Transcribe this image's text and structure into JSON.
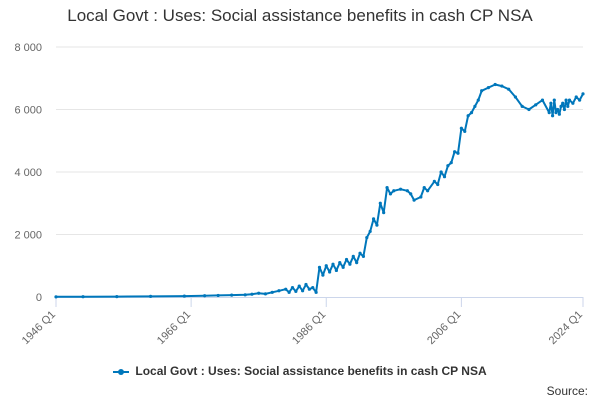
{
  "title": "Local Govt : Uses: Social assistance benefits in cash CP NSA",
  "legend_label": "Local Govt : Uses: Social assistance benefits in cash CP NSA",
  "source_label": "Source:",
  "colors": {
    "series": "#0077bb",
    "grid": "#e6e6e6",
    "axis": "#ccd6eb",
    "text": "#666666"
  },
  "chart_data": {
    "type": "line",
    "title": "Local Govt : Uses: Social assistance benefits in cash CP NSA",
    "xlabel": "",
    "ylabel": "",
    "xlim": [
      1946.0,
      2024.0
    ],
    "ylim": [
      0,
      8000
    ],
    "y_ticks": [
      0,
      2000,
      4000,
      6000,
      8000
    ],
    "y_tick_labels": [
      "0",
      "2 000",
      "4 000",
      "6 000",
      "8 000"
    ],
    "x_ticks": [
      1946.0,
      1966.0,
      1986.0,
      2006.0,
      2024.0
    ],
    "x_tick_labels": [
      "1946 Q1",
      "1966 Q1",
      "1986 Q1",
      "2006 Q1",
      "2024 Q1"
    ],
    "series": [
      {
        "name": "Local Govt : Uses: Social assistance benefits in cash CP NSA",
        "x": [
          1946,
          1950,
          1955,
          1960,
          1965,
          1968,
          1970,
          1972,
          1974,
          1975,
          1976,
          1977,
          1978,
          1979,
          1980,
          1980.5,
          1981,
          1981.5,
          1982,
          1982.5,
          1983,
          1983.5,
          1984,
          1984.5,
          1985,
          1985.5,
          1986,
          1986.5,
          1987,
          1987.5,
          1988,
          1988.5,
          1989,
          1989.5,
          1990,
          1990.5,
          1991,
          1991.5,
          1992,
          1992.5,
          1993,
          1993.5,
          1994,
          1994.5,
          1995,
          1995.5,
          1996,
          1997,
          1998,
          1998.5,
          1999,
          2000,
          2000.5,
          2001,
          2002,
          2002.5,
          2003,
          2003.5,
          2004,
          2004.5,
          2005,
          2005.5,
          2006,
          2006.5,
          2007,
          2007.5,
          2008,
          2008.5,
          2009,
          2010,
          2011,
          2012,
          2013,
          2014,
          2015,
          2016,
          2017,
          2018,
          2019,
          2019.25,
          2019.5,
          2019.75,
          2020,
          2020.25,
          2020.5,
          2020.75,
          2021,
          2021.25,
          2021.5,
          2021.75,
          2022,
          2022.5,
          2023,
          2023.5,
          2024
        ],
        "values": [
          5,
          10,
          12,
          20,
          30,
          40,
          50,
          60,
          70,
          90,
          120,
          100,
          150,
          200,
          250,
          150,
          300,
          180,
          350,
          200,
          400,
          250,
          300,
          150,
          950,
          700,
          1000,
          800,
          1050,
          850,
          1100,
          950,
          1200,
          1050,
          1300,
          1100,
          1400,
          1300,
          1900,
          2100,
          2500,
          2300,
          3000,
          2700,
          3500,
          3300,
          3400,
          3450,
          3400,
          3300,
          3100,
          3200,
          3500,
          3400,
          3700,
          3600,
          4000,
          3850,
          4200,
          4300,
          4650,
          4600,
          5400,
          5300,
          5800,
          5900,
          6100,
          6300,
          6600,
          6700,
          6800,
          6750,
          6650,
          6400,
          6100,
          6000,
          6150,
          6300,
          5900,
          6200,
          5800,
          6300,
          5900,
          6000,
          5850,
          6100,
          6200,
          6000,
          6300,
          6100,
          6300,
          6200,
          6400,
          6300,
          6500
        ]
      }
    ]
  }
}
